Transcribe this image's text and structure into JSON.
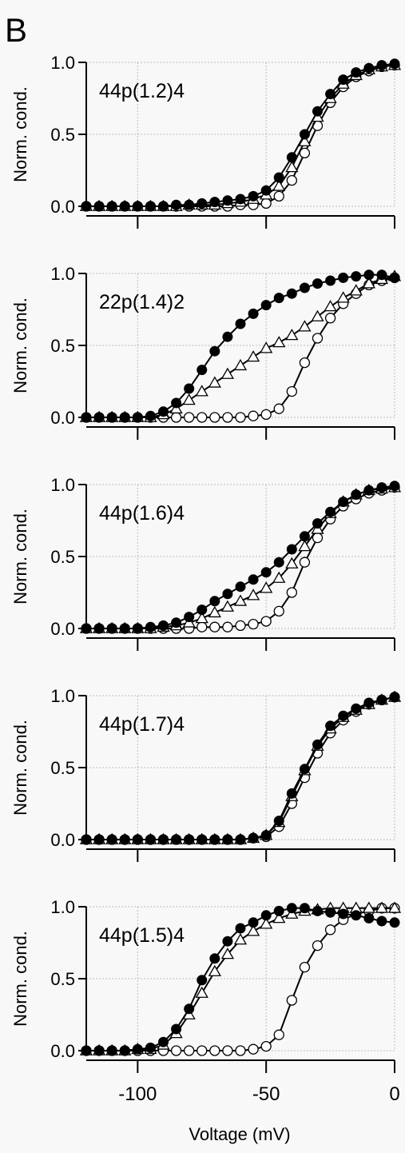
{
  "figure": {
    "panel_label": "B",
    "ylabel": "Norm. cond.",
    "xlabel": "Voltage (mV)"
  },
  "chart_data": [
    {
      "type": "line",
      "annotation": "44p(1.2)4",
      "xlim": [
        -120,
        0
      ],
      "ylim": [
        0,
        1
      ],
      "xticks": [
        -100,
        -50,
        0
      ],
      "yticks": [
        0.0,
        0.5,
        1.0
      ],
      "ytick_labels": [
        "0.0",
        "0.5",
        "1.0"
      ],
      "grid": true,
      "x": [
        -120,
        -115,
        -110,
        -105,
        -100,
        -95,
        -90,
        -85,
        -80,
        -75,
        -70,
        -65,
        -60,
        -55,
        -50,
        -45,
        -40,
        -35,
        -30,
        -25,
        -20,
        -15,
        -10,
        -5,
        0
      ],
      "series": [
        {
          "marker": "filled-circle",
          "values": [
            0,
            0,
            0,
            0,
            0,
            0,
            0,
            0.01,
            0.01,
            0.02,
            0.03,
            0.04,
            0.05,
            0.07,
            0.11,
            0.2,
            0.34,
            0.5,
            0.66,
            0.78,
            0.88,
            0.93,
            0.96,
            0.98,
            0.99
          ]
        },
        {
          "marker": "open-triangle",
          "values": [
            0,
            0,
            0,
            0,
            0,
            0,
            0,
            0,
            0.01,
            0.01,
            0.01,
            0.02,
            0.03,
            0.05,
            0.08,
            0.14,
            0.27,
            0.45,
            0.62,
            0.75,
            0.85,
            0.91,
            0.95,
            0.97,
            0.98
          ]
        },
        {
          "marker": "open-circle",
          "values": [
            0,
            0,
            0,
            0,
            0,
            0,
            0,
            0,
            0,
            0,
            0,
            0,
            0.01,
            0.01,
            0.02,
            0.07,
            0.18,
            0.37,
            0.56,
            0.72,
            0.83,
            0.9,
            0.94,
            0.97,
            0.98
          ]
        }
      ]
    },
    {
      "type": "line",
      "annotation": "22p(1.4)2",
      "xlim": [
        -120,
        0
      ],
      "ylim": [
        0,
        1
      ],
      "xticks": [
        -100,
        -50,
        0
      ],
      "yticks": [
        0.0,
        0.5,
        1.0
      ],
      "ytick_labels": [
        "0.0",
        "0.5",
        "1.0"
      ],
      "grid": true,
      "x": [
        -120,
        -115,
        -110,
        -105,
        -100,
        -95,
        -90,
        -85,
        -80,
        -75,
        -70,
        -65,
        -60,
        -55,
        -50,
        -45,
        -40,
        -35,
        -30,
        -25,
        -20,
        -15,
        -10,
        -5,
        0
      ],
      "series": [
        {
          "marker": "filled-circle",
          "values": [
            0,
            0,
            0,
            0,
            0,
            0.01,
            0.04,
            0.1,
            0.2,
            0.33,
            0.46,
            0.56,
            0.65,
            0.72,
            0.78,
            0.83,
            0.86,
            0.9,
            0.93,
            0.95,
            0.97,
            0.98,
            0.99,
            0.99,
            0.97
          ]
        },
        {
          "marker": "open-triangle",
          "values": [
            0,
            0,
            0,
            0,
            0,
            0,
            0.02,
            0.06,
            0.12,
            0.18,
            0.24,
            0.3,
            0.36,
            0.42,
            0.48,
            0.52,
            0.57,
            0.63,
            0.7,
            0.77,
            0.83,
            0.88,
            0.93,
            0.96,
            0.98
          ]
        },
        {
          "marker": "open-circle",
          "values": [
            0,
            0,
            0,
            0,
            0,
            0,
            0,
            0,
            0,
            0,
            0,
            0,
            0,
            0.01,
            0.02,
            0.06,
            0.18,
            0.38,
            0.55,
            0.69,
            0.79,
            0.86,
            0.92,
            0.95,
            0.97
          ]
        }
      ]
    },
    {
      "type": "line",
      "annotation": "44p(1.6)4",
      "xlim": [
        -120,
        0
      ],
      "ylim": [
        0,
        1
      ],
      "xticks": [
        -100,
        -50,
        0
      ],
      "yticks": [
        0.0,
        0.5,
        1.0
      ],
      "ytick_labels": [
        "0.0",
        "0.5",
        "1.0"
      ],
      "grid": true,
      "x": [
        -120,
        -115,
        -110,
        -105,
        -100,
        -95,
        -90,
        -85,
        -80,
        -75,
        -70,
        -65,
        -60,
        -55,
        -50,
        -45,
        -40,
        -35,
        -30,
        -25,
        -20,
        -15,
        -10,
        -5,
        0
      ],
      "series": [
        {
          "marker": "filled-circle",
          "values": [
            0,
            0,
            0,
            0,
            0,
            0.01,
            0.02,
            0.04,
            0.08,
            0.13,
            0.19,
            0.24,
            0.29,
            0.34,
            0.39,
            0.46,
            0.55,
            0.64,
            0.73,
            0.81,
            0.88,
            0.93,
            0.96,
            0.98,
            0.99
          ]
        },
        {
          "marker": "open-triangle",
          "values": [
            0,
            0,
            0,
            0,
            0,
            0,
            0.01,
            0.02,
            0.04,
            0.07,
            0.11,
            0.15,
            0.19,
            0.23,
            0.28,
            0.35,
            0.45,
            0.57,
            0.69,
            0.8,
            0.88,
            0.93,
            0.96,
            0.97,
            0.98
          ]
        },
        {
          "marker": "open-circle",
          "values": [
            0,
            0,
            0,
            0,
            0,
            0,
            0,
            0,
            0,
            0.01,
            0.01,
            0.01,
            0.02,
            0.03,
            0.05,
            0.12,
            0.25,
            0.46,
            0.63,
            0.76,
            0.85,
            0.9,
            0.94,
            0.96,
            0.98
          ]
        }
      ]
    },
    {
      "type": "line",
      "annotation": "44p(1.7)4",
      "xlim": [
        -120,
        0
      ],
      "ylim": [
        0,
        1
      ],
      "xticks": [
        -100,
        -50,
        0
      ],
      "yticks": [
        0.0,
        0.5,
        1.0
      ],
      "ytick_labels": [
        "0.0",
        "0.5",
        "1.0"
      ],
      "grid": true,
      "x": [
        -120,
        -115,
        -110,
        -105,
        -100,
        -95,
        -90,
        -85,
        -80,
        -75,
        -70,
        -65,
        -60,
        -55,
        -50,
        -45,
        -40,
        -35,
        -30,
        -25,
        -20,
        -15,
        -10,
        -5,
        0
      ],
      "series": [
        {
          "marker": "filled-circle",
          "values": [
            0,
            0,
            0,
            0,
            0,
            0,
            0,
            0,
            0,
            0,
            0,
            0,
            0,
            0.01,
            0.03,
            0.13,
            0.32,
            0.49,
            0.66,
            0.79,
            0.86,
            0.91,
            0.95,
            0.97,
            0.99
          ]
        },
        {
          "marker": "open-triangle",
          "values": [
            0,
            0,
            0,
            0,
            0,
            0,
            0,
            0,
            0,
            0,
            0,
            0,
            0,
            0.01,
            0.03,
            0.12,
            0.3,
            0.48,
            0.65,
            0.77,
            0.85,
            0.9,
            0.94,
            0.97,
            0.99
          ]
        },
        {
          "marker": "open-circle",
          "values": [
            0,
            0,
            0,
            0,
            0,
            0,
            0,
            0,
            0,
            0,
            0,
            0,
            0,
            0.01,
            0.02,
            0.09,
            0.25,
            0.43,
            0.6,
            0.74,
            0.83,
            0.89,
            0.94,
            0.97,
            0.99
          ]
        }
      ]
    },
    {
      "type": "line",
      "annotation": "44p(1.5)4",
      "xlim": [
        -120,
        0
      ],
      "ylim": [
        0,
        1
      ],
      "xticks": [
        -100,
        -50,
        0
      ],
      "yticks": [
        0.0,
        0.5,
        1.0
      ],
      "ytick_labels": [
        "0.0",
        "0.5",
        "1.0"
      ],
      "grid": true,
      "x": [
        -120,
        -115,
        -110,
        -105,
        -100,
        -95,
        -90,
        -85,
        -80,
        -75,
        -70,
        -65,
        -60,
        -55,
        -50,
        -45,
        -40,
        -35,
        -30,
        -25,
        -20,
        -15,
        -10,
        -5,
        0
      ],
      "series": [
        {
          "marker": "filled-circle",
          "values": [
            0,
            0,
            0,
            0,
            0.01,
            0.02,
            0.06,
            0.15,
            0.29,
            0.49,
            0.64,
            0.76,
            0.85,
            0.89,
            0.94,
            0.97,
            0.99,
            0.99,
            0.97,
            0.96,
            0.95,
            0.94,
            0.92,
            0.9,
            0.89
          ]
        },
        {
          "marker": "open-triangle",
          "values": [
            0,
            0,
            0,
            0,
            0.01,
            0.01,
            0.04,
            0.12,
            0.25,
            0.4,
            0.55,
            0.67,
            0.77,
            0.83,
            0.88,
            0.92,
            0.95,
            0.97,
            0.98,
            0.99,
            0.99,
            0.99,
            0.99,
            0.99,
            0.99
          ]
        },
        {
          "marker": "open-circle",
          "values": [
            0,
            0,
            0,
            0,
            0,
            0,
            0,
            0,
            0,
            0,
            0,
            0,
            0,
            0.01,
            0.03,
            0.11,
            0.35,
            0.58,
            0.73,
            0.84,
            0.91,
            0.95,
            0.97,
            0.99,
            0.99
          ]
        }
      ]
    }
  ]
}
